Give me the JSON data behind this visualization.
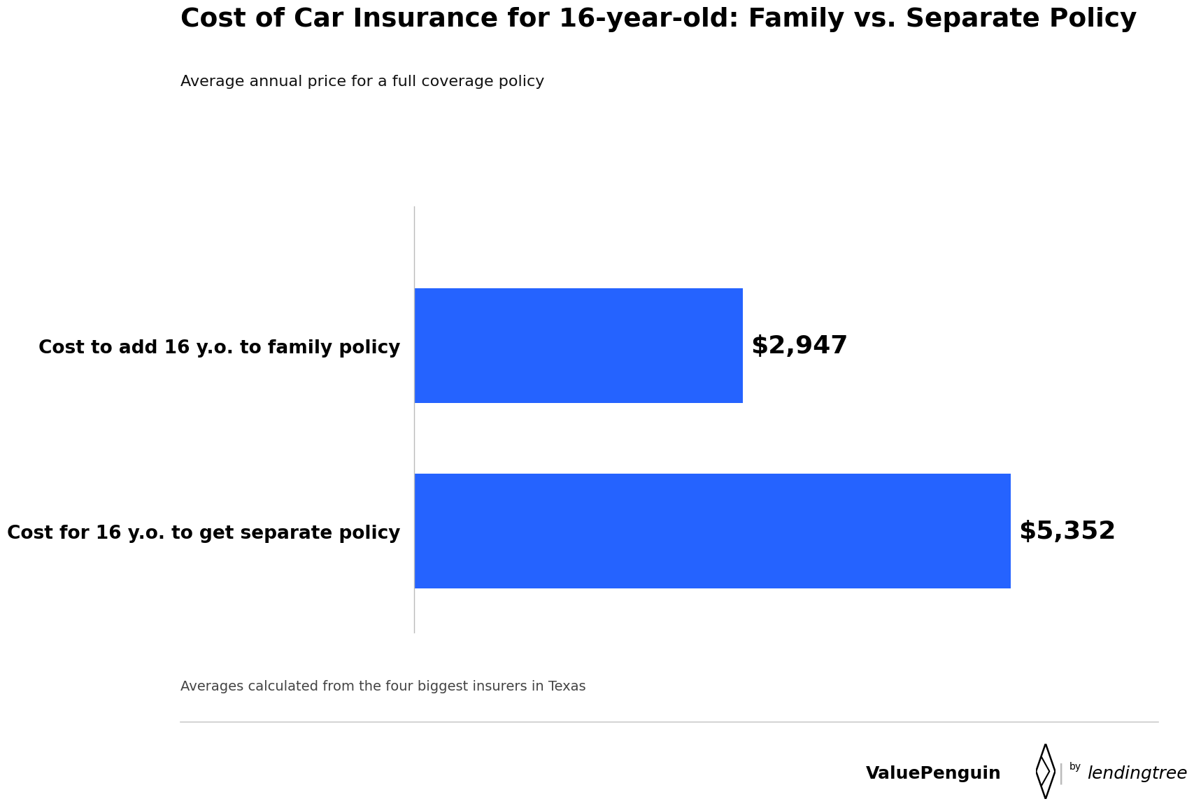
{
  "title": "Cost of Car Insurance for 16-year-old: Family vs. Separate Policy",
  "subtitle": "Average annual price for a full coverage policy",
  "footnote": "Averages calculated from the four biggest insurers in Texas",
  "categories": [
    "Cost to add 16 y.o. to family policy",
    "Cost for 16 y.o. to get separate policy"
  ],
  "values": [
    2947,
    5352
  ],
  "value_labels": [
    "$2,947",
    "$5,352"
  ],
  "bar_color": "#2563FF",
  "background_color": "#ffffff",
  "xlim": [
    0,
    6200
  ],
  "title_fontsize": 27,
  "subtitle_fontsize": 16,
  "label_fontsize": 19,
  "value_fontsize": 26,
  "footnote_fontsize": 14
}
